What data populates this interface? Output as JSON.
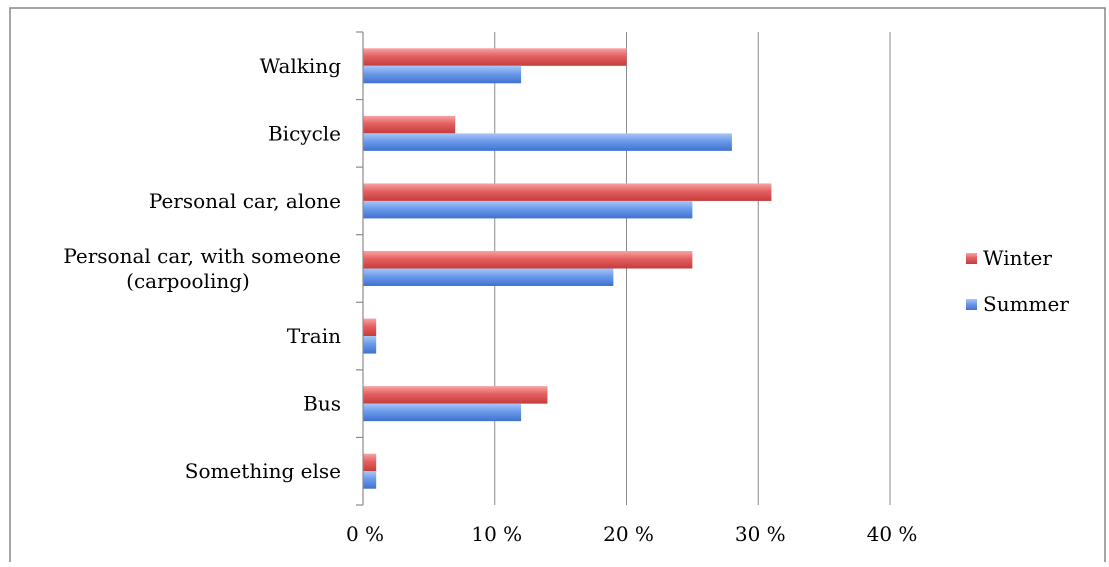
{
  "chart_data": {
    "type": "bar",
    "orientation": "horizontal",
    "title": "",
    "xlabel": "",
    "ylabel": "",
    "categories": [
      [
        "Walking"
      ],
      [
        "Bicycle"
      ],
      [
        "Personal car, alone"
      ],
      [
        "Personal car, with someone",
        "(carpooling)"
      ],
      [
        "Train"
      ],
      [
        "Bus"
      ],
      [
        "Something else"
      ]
    ],
    "series": [
      {
        "name": "Winter",
        "values": [
          20,
          7,
          31,
          25,
          1,
          14,
          1
        ],
        "color": "#e05454"
      },
      {
        "name": "Summer",
        "values": [
          12,
          28,
          25,
          19,
          1,
          12,
          1
        ],
        "color": "#5b8ee6"
      }
    ],
    "xlim": [
      0,
      40
    ],
    "xticks": [
      0,
      10,
      20,
      30,
      40
    ],
    "tick_labels": [
      "0 %",
      "10 %",
      "20 %",
      "30 %",
      "40 %"
    ],
    "grid": true,
    "legend_position": "right"
  }
}
